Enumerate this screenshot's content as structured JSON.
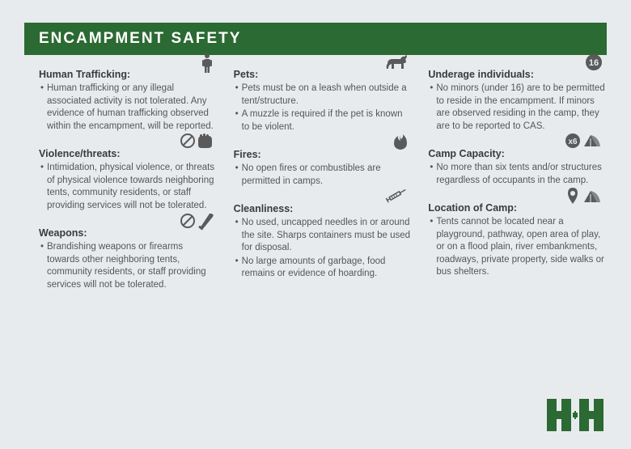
{
  "colors": {
    "page_bg": "#e8ebee",
    "header_bg": "#2b6a32",
    "icon": "#5a5a5a",
    "text": "#4a4a4a",
    "logo_green": "#2b6a32"
  },
  "header": {
    "title": "ENCAMPMENT SAFETY"
  },
  "columns": [
    {
      "sections": [
        {
          "title": "Human Trafficking:",
          "icon": "person",
          "bullets": [
            "Human trafficking or any illegal associated activity is not tolerated. Any evidence of human trafficking observed within the encampment, will be reported."
          ]
        },
        {
          "title": "Violence/threats:",
          "icon": "no-punch",
          "bullets": [
            "Intimidation, physical violence, or threats of physical violence towards neighboring tents, community residents, or staff providing services will not be tolerated."
          ]
        },
        {
          "title": "Weapons:",
          "icon": "no-knife",
          "bullets": [
            "Brandishing weapons or firearms towards other neighboring tents, community residents, or staff providing services will not be tolerated."
          ]
        }
      ]
    },
    {
      "sections": [
        {
          "title": "Pets:",
          "icon": "dog",
          "bullets": [
            "Pets must be on a leash when outside a tent/structure.",
            "A muzzle is required if the pet is known to be violent."
          ]
        },
        {
          "title": "Fires:",
          "icon": "fire",
          "bullets": [
            "No open fires or combustibles are permitted in camps."
          ]
        },
        {
          "title": "Cleanliness:",
          "icon": "syringe",
          "bullets": [
            "No used, uncapped needles in or around the site. Sharps containers must be used for disposal.",
            "No large amounts of  garbage, food remains or evidence of hoarding."
          ]
        }
      ]
    },
    {
      "sections": [
        {
          "title": "Underage individuals:",
          "icon": "age16",
          "bullets": [
            "No minors (under 16) are to be permitted to reside in the encampment. If minors are observed residing in the camp, they are to be reported to CAS."
          ]
        },
        {
          "title": "Camp Capacity:",
          "icon": "x6-tent",
          "bullets": [
            "No more than six tents and/or structures regardless of occupants in the camp."
          ]
        },
        {
          "title": "Location of Camp:",
          "icon": "pin-tent",
          "bullets": [
            "Tents cannot be located near a playground, pathway, open area of play, or on a flood plain, river embankments, roadways, private property, side walks or bus shelters."
          ]
        }
      ]
    }
  ]
}
